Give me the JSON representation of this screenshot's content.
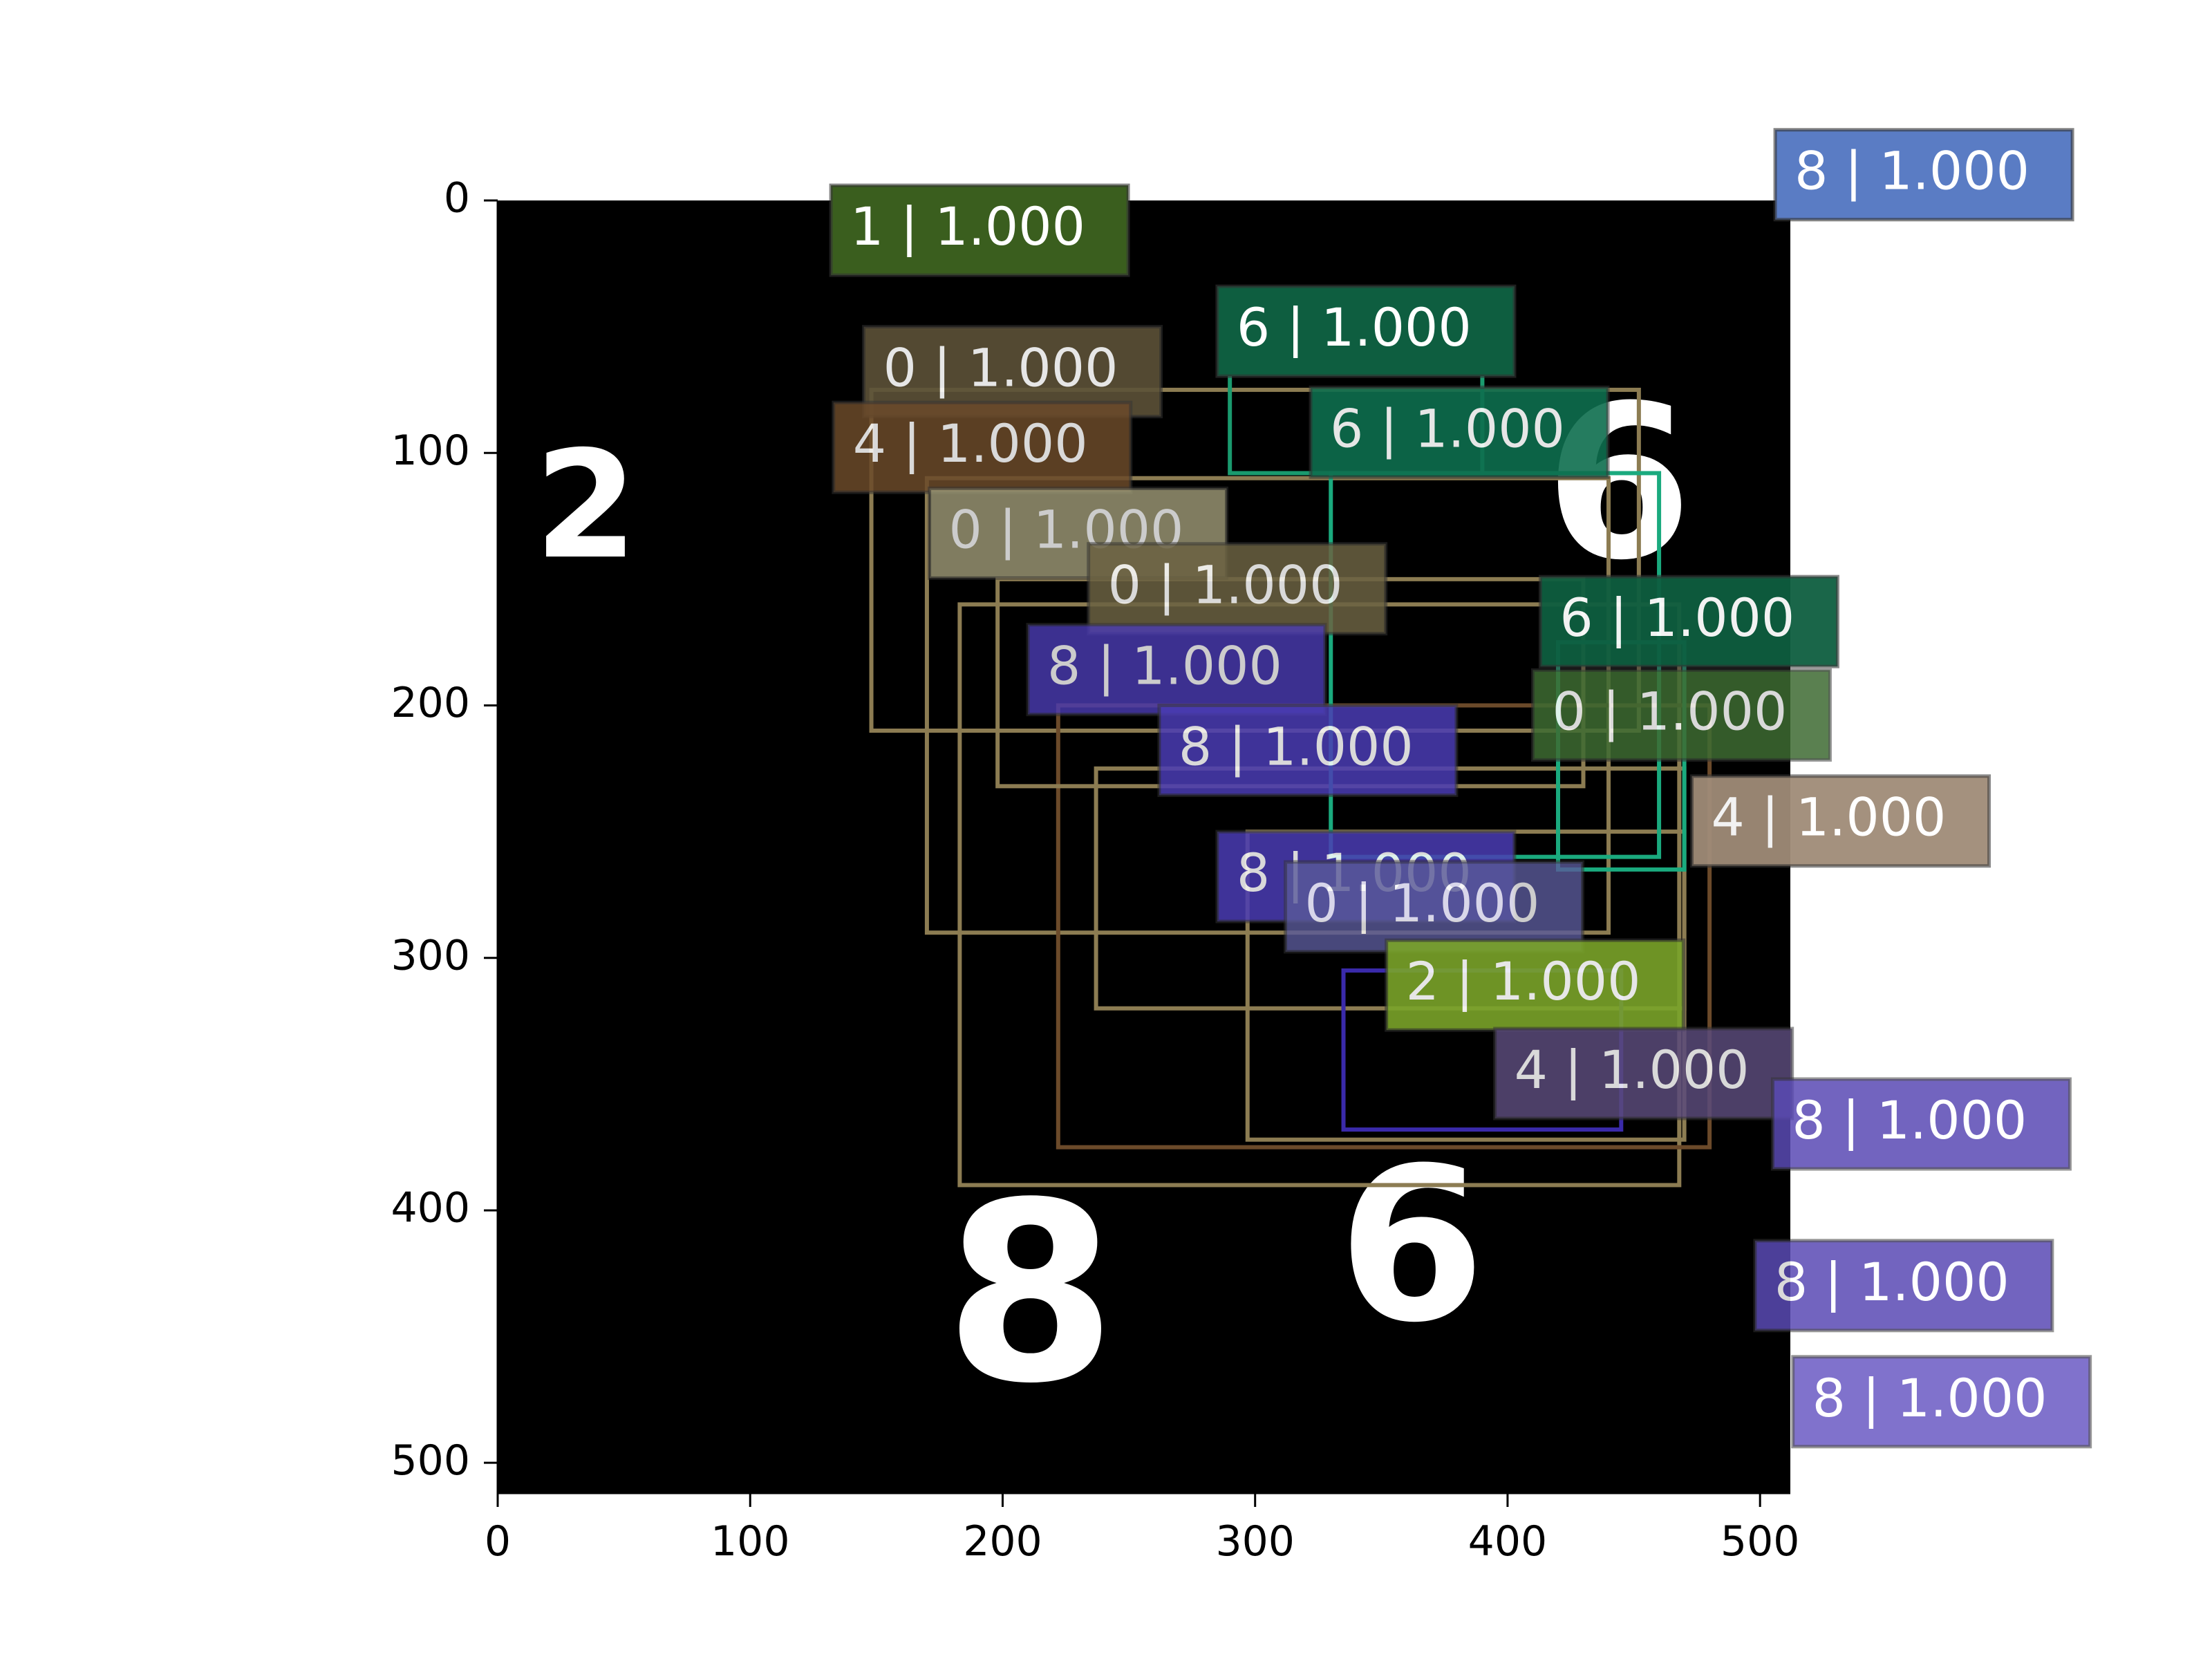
{
  "chart_data": {
    "type": "detection-overlay",
    "title": "",
    "xlabel": "",
    "ylabel": "",
    "xlim": [
      0,
      512
    ],
    "ylim": [
      512,
      0
    ],
    "x_ticks": [
      "0",
      "100",
      "200",
      "300",
      "400",
      "500"
    ],
    "y_ticks": [
      "0",
      "100",
      "200",
      "300",
      "400",
      "500"
    ],
    "image_background": "#000000",
    "image_digits": [
      {
        "text": "2",
        "x": 35,
        "y": 125,
        "size": 42
      },
      {
        "text": "8",
        "x": 211,
        "y": 440,
        "size": 70
      },
      {
        "text": "6",
        "x": 362,
        "y": 420,
        "size": 60
      },
      {
        "text": "6",
        "x": 444,
        "y": 118,
        "size": 60
      }
    ],
    "detections": [
      {
        "label": "1 | 1.000",
        "x": 132,
        "y": -6,
        "color": "#3a5e1e",
        "opacity": 1.0
      },
      {
        "label": "8 | 1.000",
        "x": 506,
        "y": -28,
        "color": "#5a7cc4",
        "opacity": 1.0
      },
      {
        "label": "6 | 1.000",
        "x": 285,
        "y": 34,
        "color": "#0e5e40",
        "opacity": 1.0
      },
      {
        "label": "0 | 1.000",
        "x": 145,
        "y": 50,
        "color": "#5c5238",
        "opacity": 0.9
      },
      {
        "label": "6 | 1.000",
        "x": 322,
        "y": 74,
        "color": "#0e6e4e",
        "opacity": 0.9
      },
      {
        "label": "4 | 1.000",
        "x": 133,
        "y": 80,
        "color": "#6b4a2a",
        "opacity": 0.85
      },
      {
        "label": "0 | 1.000",
        "x": 171,
        "y": 114,
        "color": "#a09c78",
        "opacity": 0.8
      },
      {
        "label": "0 | 1.000",
        "x": 234,
        "y": 136,
        "color": "#6b6242",
        "opacity": 0.85
      },
      {
        "label": "6 | 1.000",
        "x": 413,
        "y": 149,
        "color": "#0e5e40",
        "opacity": 0.95
      },
      {
        "label": "8 | 1.000",
        "x": 210,
        "y": 168,
        "color": "#4b3cb4",
        "opacity": 0.8
      },
      {
        "label": "0 | 1.000",
        "x": 410,
        "y": 186,
        "color": "#3e6b32",
        "opacity": 0.85
      },
      {
        "label": "8 | 1.000",
        "x": 262,
        "y": 200,
        "color": "#4b3cb4",
        "opacity": 0.85
      },
      {
        "label": "4 | 1.000",
        "x": 473,
        "y": 228,
        "color": "#a08c78",
        "opacity": 0.95
      },
      {
        "label": "8 | 1.000",
        "x": 285,
        "y": 250,
        "color": "#4b3cb4",
        "opacity": 0.85
      },
      {
        "label": "0 | 1.000",
        "x": 312,
        "y": 262,
        "color": "#5a5a9a",
        "opacity": 0.8
      },
      {
        "label": "2 | 1.000",
        "x": 352,
        "y": 293,
        "color": "#7aa42a",
        "opacity": 0.9
      },
      {
        "label": "4 | 1.000",
        "x": 395,
        "y": 328,
        "color": "#5a4a7a",
        "opacity": 0.85
      },
      {
        "label": "8 | 1.000",
        "x": 505,
        "y": 348,
        "color": "#5a4ab4",
        "opacity": 0.85
      },
      {
        "label": "8 | 1.000",
        "x": 498,
        "y": 412,
        "color": "#5a4ab4",
        "opacity": 0.85
      },
      {
        "label": "8 | 1.000",
        "x": 513,
        "y": 458,
        "color": "#6a5ac4",
        "opacity": 0.85
      }
    ],
    "bounding_boxes": [
      {
        "x1": 148,
        "y1": 75,
        "x2": 452,
        "y2": 210,
        "color": "#8c7c52"
      },
      {
        "x1": 183,
        "y1": 160,
        "x2": 468,
        "y2": 390,
        "color": "#8c7c52"
      },
      {
        "x1": 170,
        "y1": 110,
        "x2": 440,
        "y2": 290,
        "color": "#8c7c52"
      },
      {
        "x1": 222,
        "y1": 200,
        "x2": 480,
        "y2": 375,
        "color": "#6b4a2a"
      },
      {
        "x1": 198,
        "y1": 150,
        "x2": 430,
        "y2": 232,
        "color": "#8c7c52"
      },
      {
        "x1": 237,
        "y1": 225,
        "x2": 470,
        "y2": 320,
        "color": "#8c7c52"
      },
      {
        "x1": 297,
        "y1": 250,
        "x2": 470,
        "y2": 372,
        "color": "#8c7c52"
      },
      {
        "x1": 290,
        "y1": 60,
        "x2": 390,
        "y2": 108,
        "color": "#1a9a6e"
      },
      {
        "x1": 330,
        "y1": 108,
        "x2": 460,
        "y2": 260,
        "color": "#1aaa7e"
      },
      {
        "x1": 420,
        "y1": 175,
        "x2": 470,
        "y2": 265,
        "color": "#1aaa7e"
      },
      {
        "x1": 335,
        "y1": 305,
        "x2": 445,
        "y2": 368,
        "color": "#3a2aaa"
      }
    ]
  }
}
